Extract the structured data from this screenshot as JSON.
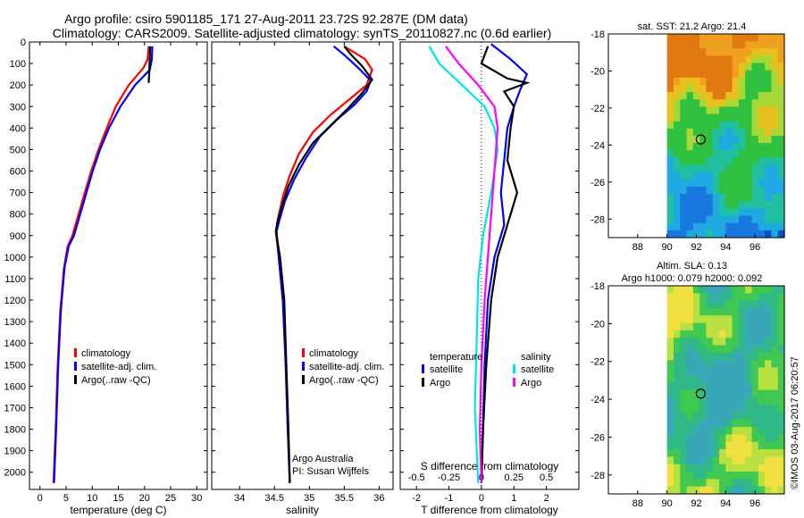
{
  "header": {
    "line1": "Argo profile: csiro 5901185_171 27-Aug-2011 23.72S 92.287E (DM data)",
    "line2": "Climatology: CARS2009. Satellite-adjusted climatology: synTS_20110827.nc (0.6d earlier)"
  },
  "colors": {
    "climatology": "#ff0000",
    "satellite": "#0000ff",
    "argo": "#000000",
    "sat_salinity": "#00e5e5",
    "argo_salinity": "#ff00ff"
  },
  "depth_ticks": [
    0,
    100,
    200,
    300,
    400,
    500,
    600,
    700,
    800,
    900,
    1000,
    1100,
    1200,
    1300,
    1400,
    1500,
    1600,
    1700,
    1800,
    1900,
    2000
  ],
  "chart_data": [
    {
      "type": "line",
      "title": "",
      "xlabel": "temperature (deg C)",
      "ylabel": "depth",
      "xlim": [
        -2,
        32
      ],
      "ylim": [
        0,
        2080
      ],
      "xticks": [
        0,
        5,
        10,
        15,
        20,
        25,
        30
      ],
      "legend": [
        "climatology",
        "satellite-adj. clim.",
        "Argo(..raw -QC)"
      ],
      "series": [
        {
          "name": "climatology",
          "color": "#ff0000",
          "points": [
            [
              20.8,
              20
            ],
            [
              20.6,
              80
            ],
            [
              19.8,
              120
            ],
            [
              17,
              200
            ],
            [
              14.5,
              300
            ],
            [
              12.8,
              400
            ],
            [
              11.2,
              500
            ],
            [
              9.8,
              600
            ],
            [
              8.6,
              700
            ],
            [
              7.4,
              800
            ],
            [
              6.2,
              900
            ],
            [
              5.3,
              950
            ],
            [
              4.6,
              1050
            ],
            [
              3.9,
              1250
            ],
            [
              3.4,
              1500
            ],
            [
              3.0,
              1800
            ],
            [
              2.6,
              2050
            ]
          ]
        },
        {
          "name": "satellite-adj. clim.",
          "color": "#0000ff",
          "points": [
            [
              21.5,
              20
            ],
            [
              21.4,
              80
            ],
            [
              21,
              130
            ],
            [
              18.2,
              200
            ],
            [
              15.4,
              300
            ],
            [
              13.2,
              400
            ],
            [
              11.5,
              500
            ],
            [
              10.1,
              600
            ],
            [
              8.9,
              700
            ],
            [
              7.7,
              800
            ],
            [
              6.5,
              900
            ],
            [
              5.5,
              950
            ],
            [
              4.7,
              1050
            ],
            [
              4.0,
              1250
            ],
            [
              3.5,
              1500
            ],
            [
              3.1,
              1800
            ],
            [
              2.7,
              2050
            ]
          ]
        },
        {
          "name": "Argo(..raw -QC)",
          "color": "#000000",
          "points": [
            [
              21.1,
              20
            ],
            [
              21,
              80
            ],
            [
              20.9,
              150
            ],
            [
              20.8,
              190
            ]
          ]
        }
      ],
      "annotations": []
    },
    {
      "type": "line",
      "xlabel": "salinity",
      "ylabel": "depth",
      "xlim": [
        33.6,
        36.2
      ],
      "ylim": [
        0,
        2080
      ],
      "xticks": [
        34,
        34.5,
        35,
        35.5,
        36
      ],
      "xticklabels": [
        "34",
        "34.5",
        "35",
        "35.5",
        "36"
      ],
      "legend": [
        "climatology",
        "satellite-adj. clim.",
        "Argo(..raw -QC)"
      ],
      "series": [
        {
          "name": "climatology",
          "color": "#ff0000",
          "points": [
            [
              35.5,
              20
            ],
            [
              35.8,
              80
            ],
            [
              35.9,
              130
            ],
            [
              35.82,
              200
            ],
            [
              35.6,
              260
            ],
            [
              35.3,
              340
            ],
            [
              35.05,
              420
            ],
            [
              34.85,
              520
            ],
            [
              34.72,
              620
            ],
            [
              34.62,
              720
            ],
            [
              34.55,
              820
            ],
            [
              34.52,
              880
            ],
            [
              34.56,
              1000
            ],
            [
              34.62,
              1200
            ],
            [
              34.66,
              1500
            ],
            [
              34.69,
              1800
            ],
            [
              34.72,
              2050
            ]
          ]
        },
        {
          "name": "satellite-adj. clim.",
          "color": "#0000ff",
          "points": [
            [
              35.35,
              20
            ],
            [
              35.5,
              60
            ],
            [
              35.7,
              120
            ],
            [
              35.88,
              180
            ],
            [
              35.82,
              230
            ],
            [
              35.65,
              290
            ],
            [
              35.4,
              360
            ],
            [
              35.15,
              440
            ],
            [
              34.95,
              540
            ],
            [
              34.78,
              640
            ],
            [
              34.65,
              740
            ],
            [
              34.57,
              830
            ],
            [
              34.53,
              880
            ],
            [
              34.56,
              1000
            ],
            [
              34.62,
              1200
            ],
            [
              34.66,
              1500
            ],
            [
              34.69,
              1800
            ],
            [
              34.72,
              2050
            ]
          ]
        },
        {
          "name": "Argo(..raw -QC)",
          "color": "#000000",
          "points": [
            [
              35.5,
              20
            ],
            [
              35.6,
              60
            ],
            [
              35.75,
              110
            ],
            [
              35.9,
              175
            ],
            [
              35.75,
              240
            ],
            [
              35.55,
              310
            ],
            [
              35.3,
              390
            ],
            [
              35.05,
              470
            ],
            [
              34.85,
              570
            ],
            [
              34.7,
              670
            ],
            [
              34.6,
              770
            ],
            [
              34.54,
              840
            ],
            [
              34.52,
              880
            ],
            [
              34.58,
              1000
            ],
            [
              34.64,
              1200
            ],
            [
              34.67,
              1500
            ],
            [
              34.7,
              1800
            ],
            [
              34.72,
              2050
            ]
          ]
        }
      ],
      "annotations": [
        "Argo Australia",
        "PI: Susan Wijffels"
      ]
    },
    {
      "type": "line",
      "xlabel": "T difference from climatology",
      "xlabel_top": "S difference from climatology",
      "xlim": [
        -2.5,
        3.0
      ],
      "ylim": [
        0,
        2080
      ],
      "xticks": [
        -2,
        -1,
        0,
        1,
        2
      ],
      "xticks_salinity": [
        "-0.5",
        "-0.25",
        "0",
        "0.25",
        "0.5"
      ],
      "legend_temperature": {
        "title": "temperature",
        "items": [
          "satellite",
          "Argo"
        ]
      },
      "legend_salinity": {
        "title": "salinity",
        "items": [
          "satellite",
          "Argo"
        ]
      },
      "series": [
        {
          "name": "temperature satellite",
          "color": "#0000ff",
          "points": [
            [
              0.3,
              10
            ],
            [
              0.9,
              80
            ],
            [
              1.4,
              150
            ],
            [
              1.2,
              220
            ],
            [
              1,
              300
            ],
            [
              0.8,
              400
            ],
            [
              0.7,
              550
            ],
            [
              0.6,
              700
            ],
            [
              0.7,
              850
            ],
            [
              0.4,
              1000
            ],
            [
              0.2,
              1200
            ],
            [
              0.1,
              1500
            ],
            [
              0.05,
              1800
            ],
            [
              0.0,
              2050
            ]
          ]
        },
        {
          "name": "temperature Argo",
          "color": "#000000",
          "points": [
            [
              0.2,
              20
            ],
            [
              0.0,
              100
            ],
            [
              0.8,
              170
            ],
            [
              1.4,
              190
            ],
            [
              0.7,
              230
            ],
            [
              1.0,
              300
            ],
            [
              0.9,
              400
            ],
            [
              0.8,
              550
            ],
            [
              1.1,
              700
            ],
            [
              0.8,
              850
            ],
            [
              0.5,
              1000
            ],
            [
              0.3,
              1200
            ],
            [
              0.15,
              1500
            ],
            [
              0.05,
              1800
            ],
            [
              0.0,
              2050
            ]
          ]
        },
        {
          "name": "salinity satellite",
          "color": "#00e5e5",
          "points": [
            [
              -1.6,
              20
            ],
            [
              -1.3,
              100
            ],
            [
              -0.6,
              200
            ],
            [
              0.1,
              300
            ],
            [
              0.4,
              400
            ],
            [
              0.5,
              500
            ],
            [
              0.3,
              700
            ],
            [
              0.05,
              900
            ],
            [
              -0.1,
              1100
            ],
            [
              -0.15,
              1400
            ],
            [
              -0.2,
              1700
            ],
            [
              -0.1,
              2050
            ]
          ]
        },
        {
          "name": "salinity Argo",
          "color": "#ff00ff",
          "points": [
            [
              -1.1,
              20
            ],
            [
              -0.7,
              100
            ],
            [
              -0.1,
              200
            ],
            [
              0.4,
              300
            ],
            [
              0.5,
              400
            ],
            [
              0.4,
              600
            ],
            [
              0.25,
              900
            ],
            [
              0.1,
              1200
            ],
            [
              0,
              1500
            ],
            [
              -0.05,
              1800
            ],
            [
              0,
              2050
            ]
          ]
        }
      ]
    },
    {
      "type": "heatmap",
      "title": "sat. SST: 21.2 Argo: 21.4",
      "xlim": [
        86,
        98
      ],
      "ylim": [
        -29,
        -18
      ],
      "xticks": [
        88,
        90,
        92,
        94,
        96
      ],
      "yticks": [
        -28,
        -26,
        -24,
        -22,
        -20,
        -18
      ],
      "argo_position": {
        "lon": 92.3,
        "lat": -23.7
      }
    },
    {
      "type": "heatmap",
      "title": "Altim. SLA: 0.13",
      "subtitle": "Argo h1000: 0.079 h2000: 0.092",
      "xlim": [
        86,
        98
      ],
      "ylim": [
        -29,
        -18
      ],
      "xticks": [
        88,
        90,
        92,
        94,
        96
      ],
      "yticks": [
        -28,
        -26,
        -24,
        -22,
        -20,
        -18
      ],
      "argo_position": {
        "lon": 92.3,
        "lat": -23.7
      }
    }
  ],
  "footer": {
    "stamp": "©IMOS 03-Aug-2017 06:20:57"
  }
}
